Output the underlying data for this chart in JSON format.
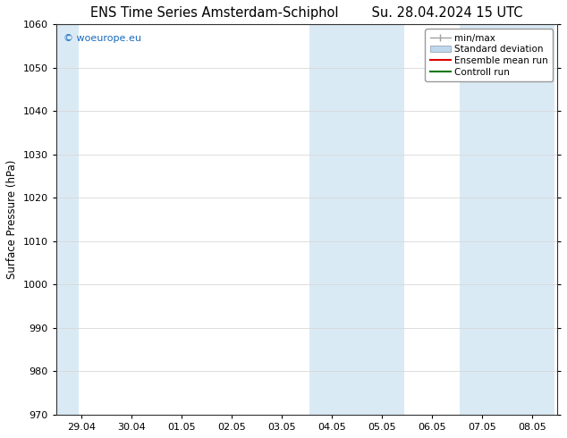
{
  "title_left": "ENS Time Series Amsterdam-Schiphol",
  "title_right": "Su. 28.04.2024 15 UTC",
  "ylabel": "Surface Pressure (hPa)",
  "ylim": [
    970,
    1060
  ],
  "yticks": [
    970,
    980,
    990,
    1000,
    1010,
    1020,
    1030,
    1040,
    1050,
    1060
  ],
  "xtick_labels": [
    "29.04",
    "30.04",
    "01.05",
    "02.05",
    "03.05",
    "04.05",
    "05.05",
    "06.05",
    "07.05",
    "08.05"
  ],
  "shaded_color": "#daeaf5",
  "watermark_text": "© woeurope.eu",
  "watermark_color": "#1a6bbf",
  "background_color": "#ffffff",
  "legend_entries": [
    "min/max",
    "Standard deviation",
    "Ensemble mean run",
    "Controll run"
  ],
  "legend_colors_line": [
    "#a0a0a0",
    "#c0d8ec",
    "#dd0000",
    "#007700"
  ],
  "grid_color": "#d8d8d8",
  "spine_color": "#333333",
  "title_fontsize": 10.5,
  "axis_fontsize": 8.5,
  "tick_fontsize": 8
}
